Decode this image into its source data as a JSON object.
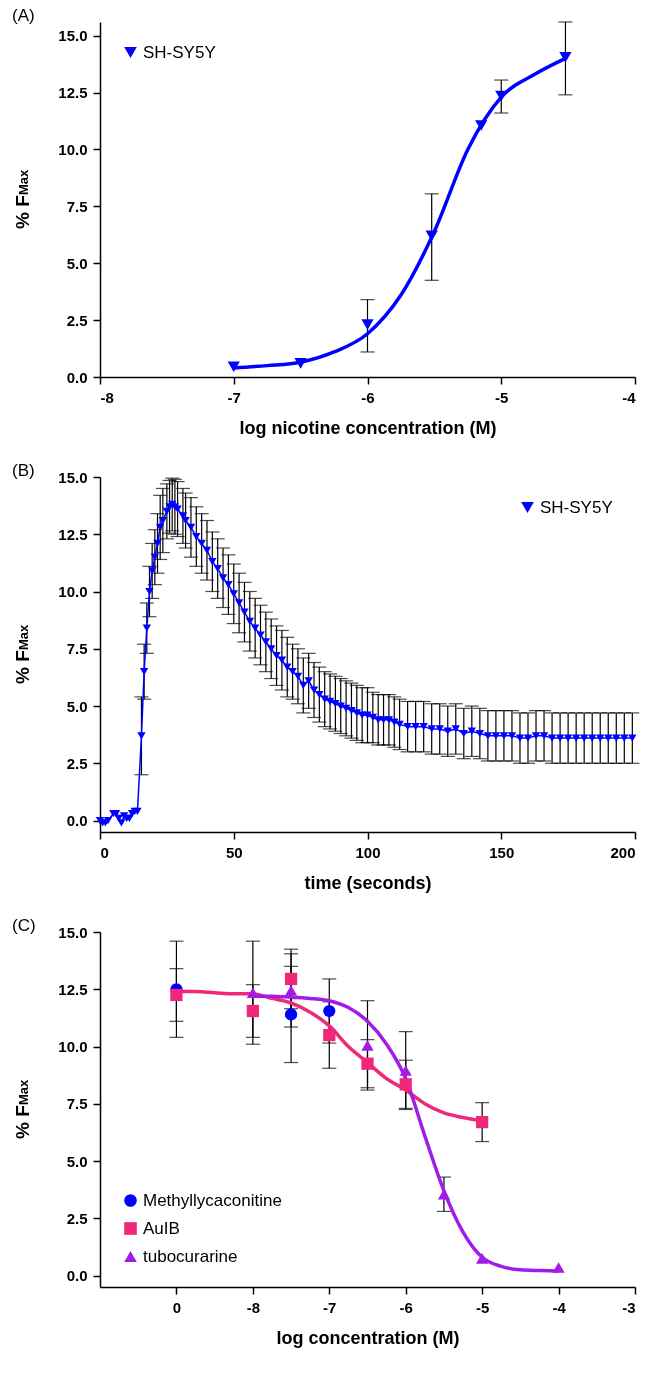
{
  "chart_data": [
    {
      "type": "scatter",
      "title": "(A)",
      "xlabel": "log nicotine concentration (M)",
      "ylabel": "% F$_{Max}$",
      "legend": "top left",
      "xlim": [
        -8,
        -4
      ],
      "xticks": [
        -8,
        -7,
        -6,
        -5,
        -4
      ],
      "ylim": [
        0,
        15.6
      ],
      "yticks": [
        {
          "value": 0,
          "label": "0.0"
        },
        {
          "value": 2.5,
          "label": "2.5"
        },
        {
          "value": 5,
          "label": "5.0"
        },
        {
          "value": 7.5,
          "label": "7.5"
        },
        {
          "value": 10,
          "label": "10.0"
        },
        {
          "value": 12.5,
          "label": "12.5"
        },
        {
          "value": 15,
          "label": "15.0"
        }
      ],
      "x": [
        -7,
        -6.5,
        -6,
        -5.52,
        -5.15,
        -5,
        -4.52
      ],
      "series": [
        {
          "name": "SH-SY5Y",
          "color": "#0000ff",
          "marker": "triangle-down",
          "values": [
            0.45,
            0.6,
            2.3,
            6.2,
            11.05,
            12.35,
            14.05
          ],
          "errors": [
            null,
            null,
            [
              1.1,
              3.4
            ],
            [
              4.25,
              8.05
            ],
            null,
            [
              11.6,
              13.05
            ],
            [
              12.4,
              15.6
            ]
          ]
        },
        {
          "type": "line",
          "color": "#0000ff",
          "x": [
            -7,
            -6.75,
            -6.5,
            -6.25,
            -6,
            -5.75,
            -5.5,
            -5.25,
            -5,
            -4.75,
            -4.52
          ],
          "values": [
            0.4,
            0.5,
            0.65,
            1.1,
            1.9,
            3.6,
            6.4,
            10.0,
            12.3,
            13.3,
            14.0
          ]
        }
      ]
    },
    {
      "type": "line",
      "title": "(B)",
      "xlabel": "time (seconds)",
      "ylabel": "% F$_{Max}$",
      "legend": "top right",
      "xlim": [
        0,
        200
      ],
      "xticks": [
        0,
        50,
        100,
        150,
        200
      ],
      "ylim": [
        -0.5,
        15
      ],
      "yticks": [
        {
          "value": 0,
          "label": "0.0"
        },
        {
          "value": 2.5,
          "label": "2.5"
        },
        {
          "value": 5,
          "label": "5.0"
        },
        {
          "value": 7.5,
          "label": "7.5"
        },
        {
          "value": 10,
          "label": "10.0"
        },
        {
          "value": 12.5,
          "label": "12.5"
        },
        {
          "value": 15,
          "label": "15.0"
        }
      ],
      "x": [
        0,
        1,
        2,
        3,
        5,
        6,
        7,
        8,
        9,
        10,
        11,
        12,
        13,
        14,
        15.5,
        16.5,
        17.5,
        18.5,
        19.5,
        20.5,
        21.5,
        22.5,
        23.5,
        25,
        26,
        27,
        28,
        29,
        31,
        32,
        34,
        36,
        38,
        40,
        42,
        44,
        46,
        48,
        50,
        52,
        54,
        56,
        58,
        60,
        62,
        64,
        66,
        68,
        70,
        72,
        74,
        76,
        78,
        80,
        82,
        84,
        86,
        88,
        90,
        92,
        94,
        96,
        98,
        100,
        102,
        104,
        106,
        108,
        110,
        112,
        115,
        118,
        121,
        124,
        127,
        130,
        133,
        136,
        139,
        142,
        145,
        148,
        151,
        154,
        157,
        160,
        163,
        166,
        169,
        172,
        175,
        178,
        181,
        184,
        187,
        190,
        193,
        196,
        199
      ],
      "series": [
        {
          "name": "SH-SY5Y",
          "color": "#0000ff",
          "marker": "triangle-down",
          "values": [
            0.0,
            -0.1,
            -0.1,
            0.0,
            0.3,
            0.3,
            0.1,
            -0.1,
            0.2,
            0.1,
            0.1,
            0.3,
            0.4,
            0.4,
            3.7,
            6.5,
            8.4,
            10.0,
            10.9,
            11.5,
            12.1,
            12.8,
            13.1,
            13.5,
            13.7,
            13.8,
            13.7,
            13.6,
            13.3,
            13.1,
            12.8,
            12.4,
            12.1,
            11.8,
            11.3,
            11.0,
            10.6,
            10.3,
            9.9,
            9.5,
            9.1,
            8.7,
            8.4,
            8.1,
            7.8,
            7.5,
            7.2,
            7.0,
            6.7,
            6.5,
            6.3,
            5.9,
            6.1,
            5.7,
            5.5,
            5.3,
            5.2,
            5.1,
            5.0,
            4.9,
            4.8,
            4.7,
            4.6,
            4.6,
            4.5,
            4.4,
            4.4,
            4.4,
            4.3,
            4.2,
            4.1,
            4.1,
            4.1,
            4.0,
            4.0,
            3.9,
            4.0,
            3.8,
            3.9,
            3.8,
            3.7,
            3.7,
            3.7,
            3.7,
            3.6,
            3.6,
            3.7,
            3.7,
            3.6,
            3.6,
            3.6,
            3.6,
            3.6,
            3.6,
            3.6,
            3.6,
            3.6,
            3.6,
            3.6
          ],
          "errors": [
            null,
            null,
            null,
            null,
            null,
            null,
            null,
            null,
            null,
            null,
            null,
            null,
            null,
            null,
            1.7,
            1.2,
            1.1,
            1.1,
            1.2,
            1.2,
            1.3,
            1.4,
            1.4,
            1.2,
            1.15,
            1.15,
            1.2,
            1.2,
            1.2,
            1.2,
            1.3,
            1.3,
            1.3,
            1.3,
            1.3,
            1.3,
            1.3,
            1.3,
            1.3,
            1.3,
            1.3,
            1.3,
            1.3,
            1.3,
            1.3,
            1.3,
            1.3,
            1.3,
            1.3,
            1.2,
            1.2,
            1.2,
            1.2,
            1.2,
            1.2,
            1.2,
            1.2,
            1.2,
            1.2,
            1.2,
            1.2,
            1.2,
            1.2,
            1.2,
            1.1,
            1.1,
            1.1,
            1.1,
            1.1,
            1.1,
            1.1,
            1.1,
            1.1,
            1.1,
            1.1,
            1.1,
            1.1,
            1.1,
            1.1,
            1.1,
            1.1,
            1.1,
            1.1,
            1.1,
            1.1,
            1.1,
            1.1,
            1.1,
            1.1,
            1.1,
            1.1,
            1.1,
            1.1,
            1.1,
            1.1,
            1.1,
            1.1,
            1.1,
            1.1
          ]
        }
      ]
    },
    {
      "type": "scatter",
      "title": "(C)",
      "xlabel": "log concentration (M)",
      "ylabel": "% F$_{Max}$",
      "legend": "bottom left",
      "categories": [
        null,
        null,
        null,
        null,
        "0",
        null,
        null,
        null,
        "-8",
        null,
        null,
        null,
        "-7",
        null,
        null,
        null,
        "-6",
        null,
        null,
        null,
        "-5",
        null,
        null,
        null,
        "-4",
        null,
        null,
        null,
        "-3"
      ],
      "ylim": [
        -0.5,
        15
      ],
      "yticks": [
        {
          "value": 0,
          "label": "0.0"
        },
        {
          "value": 2.5,
          "label": "2.5"
        },
        {
          "value": 5,
          "label": "5.0"
        },
        {
          "value": 7.5,
          "label": "7.5"
        },
        {
          "value": 10,
          "label": "10.0"
        },
        {
          "value": 12.5,
          "label": "12.5"
        },
        {
          "value": 15,
          "label": "15.0"
        }
      ],
      "series": [
        {
          "name": "Methyllycaconitine",
          "color": "#0000ff",
          "marker": "circle",
          "values": [
            null,
            null,
            null,
            null,
            12.5,
            null,
            null,
            null,
            null,
            null,
            11.4,
            null,
            11.55,
            null,
            null,
            null,
            null,
            null,
            null,
            null,
            null,
            null,
            null,
            null,
            null,
            null,
            null,
            null,
            null
          ],
          "errors": [
            null,
            null,
            null,
            null,
            2.1,
            null,
            null,
            null,
            null,
            null,
            2.1,
            null,
            1.4,
            null,
            null,
            null,
            null,
            null,
            null,
            null,
            null,
            null,
            null,
            null,
            null,
            null,
            null,
            null,
            null
          ]
        },
        {
          "name": "AuIB",
          "color": "#f0287a",
          "marker": "square",
          "values": [
            null,
            null,
            null,
            null,
            12.25,
            null,
            null,
            null,
            11.55,
            null,
            12.95,
            null,
            10.5,
            null,
            9.25,
            null,
            8.35,
            null,
            null,
            null,
            6.7,
            null,
            null,
            null,
            null,
            null,
            null,
            null,
            null
          ],
          "errors": [
            null,
            null,
            null,
            null,
            1.15,
            null,
            null,
            null,
            1.15,
            null,
            1.3,
            null,
            1.45,
            null,
            1.05,
            null,
            1.05,
            null,
            null,
            null,
            0.85,
            null,
            null,
            null,
            null,
            null,
            null,
            null,
            null
          ]
        },
        {
          "name": "tubocurarine",
          "color": "#a21ce8",
          "marker": "triangle",
          "values": [
            null,
            null,
            null,
            null,
            null,
            null,
            null,
            null,
            12.35,
            null,
            12.45,
            null,
            null,
            null,
            10.05,
            null,
            8.95,
            null,
            3.55,
            null,
            0.75,
            null,
            null,
            null,
            0.35,
            null,
            null,
            null,
            null
          ],
          "errors": [
            null,
            null,
            null,
            null,
            null,
            null,
            null,
            null,
            2.25,
            null,
            1.6,
            null,
            null,
            null,
            1.95,
            null,
            1.7,
            null,
            0.75,
            null,
            null,
            null,
            null,
            null,
            null,
            null,
            null,
            null,
            null
          ]
        },
        {
          "type": "line",
          "color": "#f0287a",
          "values": [
            null,
            null,
            null,
            null,
            12.4,
            12.4,
            12.35,
            12.3,
            12.3,
            12.1,
            11.9,
            11.5,
            10.9,
            10.0,
            9.3,
            8.6,
            8.1,
            7.5,
            7.1,
            6.9,
            6.75,
            null,
            null,
            null,
            null,
            null,
            null,
            null,
            null
          ]
        },
        {
          "type": "line",
          "color": "#a21ce8",
          "values": [
            null,
            null,
            null,
            null,
            null,
            null,
            null,
            null,
            12.2,
            12.2,
            12.15,
            12.1,
            12.0,
            11.7,
            11.1,
            10.1,
            8.6,
            6.1,
            3.7,
            1.9,
            0.8,
            0.4,
            0.25,
            0.22,
            0.2,
            null,
            null,
            null,
            null
          ]
        }
      ]
    }
  ]
}
